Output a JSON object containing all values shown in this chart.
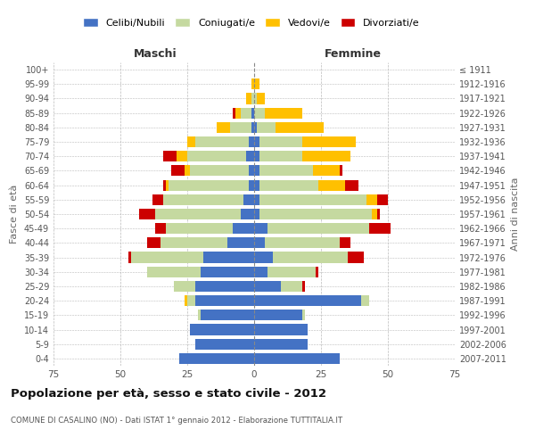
{
  "age_groups": [
    "0-4",
    "5-9",
    "10-14",
    "15-19",
    "20-24",
    "25-29",
    "30-34",
    "35-39",
    "40-44",
    "45-49",
    "50-54",
    "55-59",
    "60-64",
    "65-69",
    "70-74",
    "75-79",
    "80-84",
    "85-89",
    "90-94",
    "95-99",
    "100+"
  ],
  "birth_years": [
    "2007-2011",
    "2002-2006",
    "1997-2001",
    "1992-1996",
    "1987-1991",
    "1982-1986",
    "1977-1981",
    "1972-1976",
    "1967-1971",
    "1962-1966",
    "1957-1961",
    "1952-1956",
    "1947-1951",
    "1942-1946",
    "1937-1941",
    "1932-1936",
    "1927-1931",
    "1922-1926",
    "1917-1921",
    "1912-1916",
    "≤ 1911"
  ],
  "maschi": {
    "celibi": [
      28,
      22,
      24,
      20,
      22,
      22,
      20,
      19,
      10,
      8,
      5,
      4,
      2,
      2,
      3,
      2,
      1,
      1,
      0,
      0,
      0
    ],
    "coniugati": [
      0,
      0,
      0,
      1,
      3,
      8,
      20,
      27,
      25,
      25,
      32,
      30,
      30,
      22,
      22,
      20,
      8,
      4,
      1,
      0,
      0
    ],
    "vedovi": [
      0,
      0,
      0,
      0,
      1,
      0,
      0,
      0,
      0,
      0,
      0,
      0,
      1,
      2,
      4,
      3,
      5,
      2,
      2,
      1,
      0
    ],
    "divorziati": [
      0,
      0,
      0,
      0,
      0,
      0,
      0,
      1,
      5,
      4,
      6,
      4,
      1,
      5,
      5,
      0,
      0,
      1,
      0,
      0,
      0
    ]
  },
  "femmine": {
    "nubili": [
      32,
      20,
      20,
      18,
      40,
      10,
      5,
      7,
      4,
      5,
      2,
      2,
      2,
      2,
      2,
      2,
      1,
      0,
      0,
      0,
      0
    ],
    "coniugate": [
      0,
      0,
      0,
      1,
      3,
      8,
      18,
      28,
      28,
      38,
      42,
      40,
      22,
      20,
      16,
      16,
      7,
      4,
      1,
      0,
      0
    ],
    "vedove": [
      0,
      0,
      0,
      0,
      0,
      0,
      0,
      0,
      0,
      0,
      2,
      4,
      10,
      10,
      18,
      20,
      18,
      14,
      3,
      2,
      0
    ],
    "divorziate": [
      0,
      0,
      0,
      0,
      0,
      1,
      1,
      6,
      4,
      8,
      1,
      4,
      5,
      1,
      0,
      0,
      0,
      0,
      0,
      0,
      0
    ]
  },
  "colors": {
    "celibi": "#4472c4",
    "coniugati": "#c5d9a0",
    "vedovi": "#ffc000",
    "divorziati": "#cc0000"
  },
  "xlim": 75,
  "title": "Popolazione per età, sesso e stato civile - 2012",
  "subtitle": "COMUNE DI CASALINO (NO) - Dati ISTAT 1° gennaio 2012 - Elaborazione TUTTITALIA.IT",
  "ylabel": "Fasce di età",
  "ylabel_right": "Anni di nascita",
  "legend_labels": [
    "Celibi/Nubili",
    "Coniugati/e",
    "Vedovi/e",
    "Divorziati/e"
  ],
  "background_color": "#ffffff",
  "grid_color": "#bbbbbb"
}
